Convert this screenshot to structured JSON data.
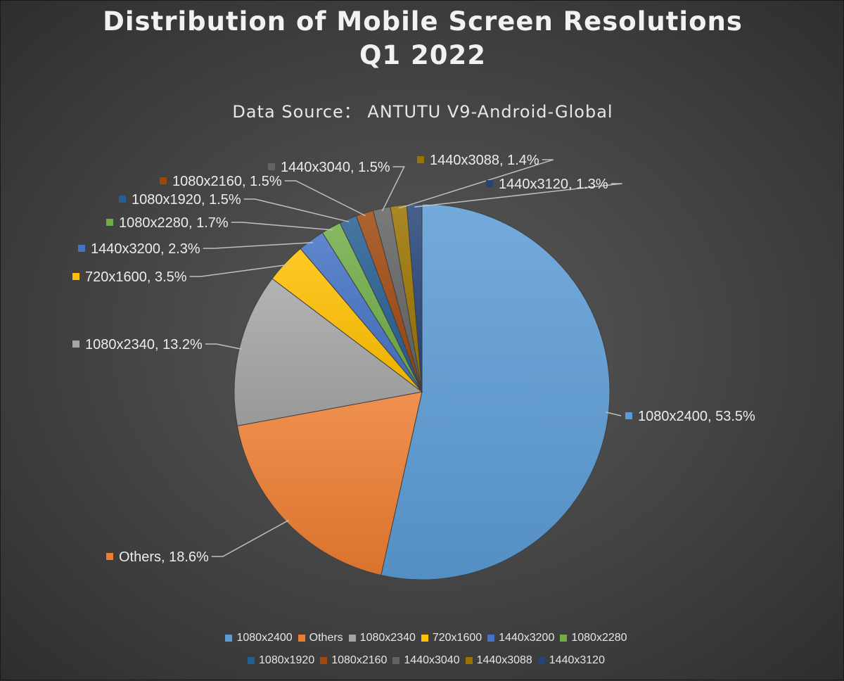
{
  "chart_data": {
    "type": "pie",
    "title": "Distribution of Mobile Screen Resolutions",
    "title_line2": "Q1 2022",
    "subtitle": "Data Source： ANTUTU V9-Android-Global",
    "legend_position": "bottom",
    "unit": "%",
    "slices": [
      {
        "label": "1080x2400",
        "value": 53.5,
        "color": "#5b9bd5",
        "display": "1080x2400, 53.5%"
      },
      {
        "label": "Others",
        "value": 18.6,
        "color": "#ed7d31",
        "display": "Others, 18.6%"
      },
      {
        "label": "1080x2340",
        "value": 13.2,
        "color": "#a5a5a5",
        "display": "1080x2340, 13.2%"
      },
      {
        "label": "720x1600",
        "value": 3.5,
        "color": "#ffc000",
        "display": "720x1600, 3.5%"
      },
      {
        "label": "1440x3200",
        "value": 2.3,
        "color": "#4472c4",
        "display": "1440x3200, 2.3%"
      },
      {
        "label": "1080x2280",
        "value": 1.7,
        "color": "#70ad47",
        "display": "1080x2280, 1.7%"
      },
      {
        "label": "1080x1920",
        "value": 1.5,
        "color": "#255e91",
        "display": "1080x1920, 1.5%"
      },
      {
        "label": "1080x2160",
        "value": 1.5,
        "color": "#9e480e",
        "display": "1080x2160, 1.5%"
      },
      {
        "label": "1440x3040",
        "value": 1.5,
        "color": "#636363",
        "display": "1440x3040, 1.5%"
      },
      {
        "label": "1440x3088",
        "value": 1.4,
        "color": "#997300",
        "display": "1440x3088, 1.4%"
      },
      {
        "label": "1440x3120",
        "value": 1.3,
        "color": "#264478",
        "display": "1440x3120, 1.3%"
      }
    ]
  }
}
